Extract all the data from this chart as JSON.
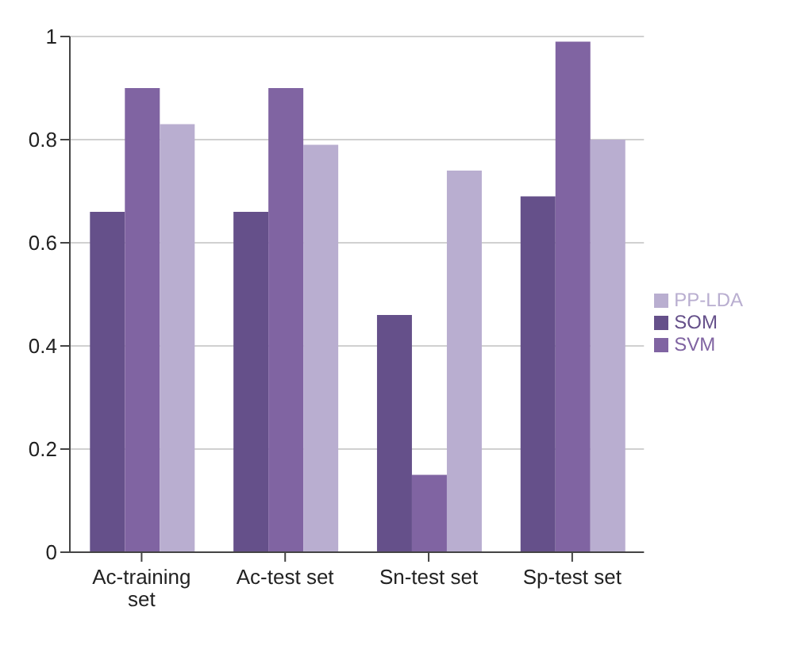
{
  "chart_data": {
    "type": "bar",
    "categories": [
      "Ac-training set",
      "Ac-test set",
      "Sn-test set",
      "Sp-test set"
    ],
    "series": [
      {
        "name": "SOM",
        "color": "#65508a",
        "values": [
          0.66,
          0.66,
          0.46,
          0.69
        ]
      },
      {
        "name": "SVM",
        "color": "#8064a2",
        "values": [
          0.9,
          0.9,
          0.15,
          0.99
        ]
      },
      {
        "name": "PP-LDA",
        "color": "#b9aed0",
        "values": [
          0.83,
          0.79,
          0.74,
          0.8
        ]
      }
    ],
    "ylim": [
      0,
      1
    ],
    "yticks": [
      0,
      0.2,
      0.4,
      0.6,
      0.8,
      1
    ],
    "grid": "y",
    "legend": "right"
  }
}
